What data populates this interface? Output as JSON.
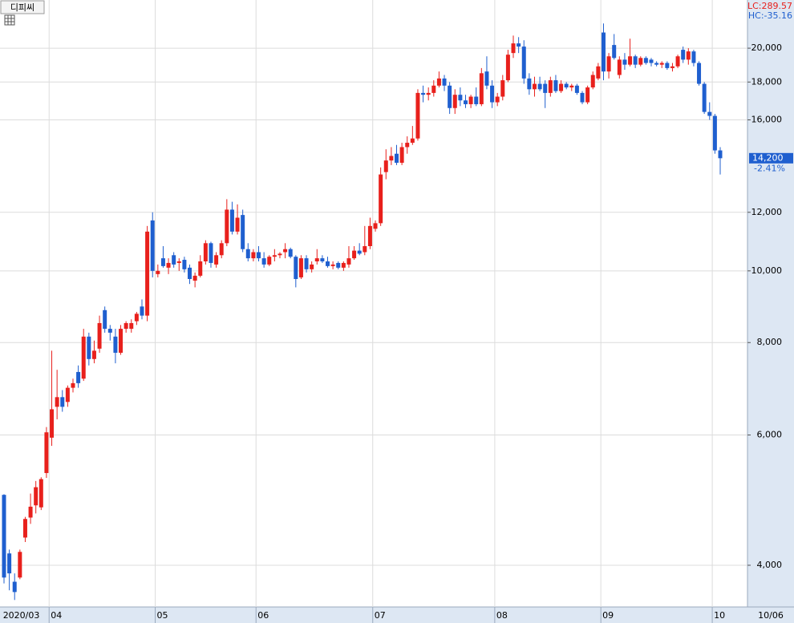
{
  "chart_data": {
    "type": "candlestick",
    "title": "디피씨",
    "lc_label": "LC:289.57",
    "hc_label": "HC:-35.16",
    "last_date": "10/06",
    "last_price": {
      "value": 14200,
      "label": "14,200"
    },
    "change": {
      "value": -2.41,
      "label": "-2.41%"
    },
    "up_color": "#e8201c",
    "down_color": "#1f5fcf",
    "log_scale": true,
    "grid": true,
    "ylim": [
      3513,
      23236
    ],
    "yticks": [
      {
        "value": 4000,
        "label": "4,000"
      },
      {
        "value": 6000,
        "label": "6,000"
      },
      {
        "value": 8000,
        "label": "8,000"
      },
      {
        "value": 10000,
        "label": "10,000"
      },
      {
        "value": 12000,
        "label": "12,000"
      },
      {
        "value": 16000,
        "label": "16,000"
      },
      {
        "value": 18000,
        "label": "18,000"
      },
      {
        "value": 20000,
        "label": "20,000"
      }
    ],
    "categories": [
      "2020/03",
      null,
      null,
      null,
      null,
      null,
      null,
      null,
      null,
      "04",
      null,
      null,
      null,
      null,
      null,
      null,
      null,
      null,
      null,
      null,
      null,
      null,
      null,
      null,
      null,
      null,
      null,
      null,
      null,
      "05",
      null,
      null,
      null,
      null,
      null,
      null,
      null,
      null,
      null,
      null,
      null,
      null,
      null,
      null,
      null,
      null,
      null,
      null,
      "06",
      null,
      null,
      null,
      null,
      null,
      null,
      null,
      null,
      null,
      null,
      null,
      null,
      null,
      null,
      null,
      null,
      null,
      null,
      null,
      null,
      null,
      "07",
      null,
      null,
      null,
      null,
      null,
      null,
      null,
      null,
      null,
      null,
      null,
      null,
      null,
      null,
      null,
      null,
      null,
      null,
      null,
      null,
      null,
      null,
      "08",
      null,
      null,
      null,
      null,
      null,
      null,
      null,
      null,
      null,
      null,
      null,
      null,
      null,
      null,
      null,
      null,
      null,
      null,
      null,
      "09",
      null,
      null,
      null,
      null,
      null,
      null,
      null,
      null,
      null,
      null,
      null,
      null,
      null,
      null,
      null,
      null,
      null,
      null,
      null,
      null,
      "10",
      null
    ],
    "open": [
      4980,
      4150,
      3800,
      3850,
      4360,
      4640,
      4820,
      4790,
      5330,
      5950,
      6550,
      6750,
      6650,
      6950,
      7300,
      7150,
      8150,
      7600,
      7850,
      8850,
      8350,
      8150,
      7750,
      8350,
      8350,
      8550,
      8950,
      8700,
      11700,
      9900,
      10400,
      10100,
      10500,
      10250,
      10350,
      10100,
      9700,
      9850,
      10300,
      10900,
      10200,
      10500,
      10900,
      12100,
      11300,
      11900,
      10700,
      10400,
      10600,
      10400,
      10200,
      10450,
      10500,
      10600,
      10700,
      10450,
      9800,
      10400,
      10050,
      10300,
      10400,
      10300,
      10150,
      10250,
      10100,
      10200,
      10400,
      10650,
      10600,
      10800,
      11400,
      11600,
      13600,
      14100,
      14400,
      14000,
      14700,
      14900,
      15100,
      17400,
      17300,
      17400,
      17800,
      18200,
      17800,
      16600,
      17300,
      17000,
      16800,
      17200,
      16800,
      18600,
      17800,
      16900,
      17200,
      18100,
      19700,
      20300,
      20100,
      18200,
      17600,
      17900,
      17900,
      17400,
      18100,
      17500,
      17900,
      17700,
      17800,
      17400,
      16900,
      17700,
      18200,
      21000,
      18600,
      20200,
      18400,
      19300,
      19000,
      19500,
      19000,
      19400,
      19300,
      19100,
      19000,
      19100,
      18800,
      18900,
      19900,
      19300,
      19800,
      19100,
      17900,
      16400,
      16200,
      14550
    ],
    "high": [
      4990,
      4200,
      3900,
      4200,
      4650,
      5000,
      5200,
      5260,
      6150,
      7800,
      7350,
      6900,
      7000,
      7150,
      7450,
      8350,
      8250,
      8050,
      8700,
      8950,
      8450,
      8350,
      8450,
      8550,
      8600,
      8800,
      9150,
      11500,
      12000,
      10200,
      10800,
      10400,
      10600,
      10400,
      10450,
      10200,
      9950,
      10500,
      11000,
      10950,
      10600,
      11000,
      12500,
      12400,
      12300,
      12100,
      10900,
      10700,
      10800,
      10600,
      10500,
      10700,
      10600,
      10900,
      10750,
      10500,
      10500,
      10500,
      10300,
      10700,
      10500,
      10450,
      10300,
      10300,
      10300,
      10800,
      10800,
      10900,
      11500,
      11800,
      11700,
      13800,
      14600,
      14700,
      14800,
      14900,
      15200,
      15700,
      17600,
      17800,
      17700,
      18100,
      18600,
      18400,
      18000,
      17600,
      17700,
      17300,
      17300,
      17700,
      18800,
      19500,
      18100,
      17400,
      18400,
      19900,
      20800,
      20700,
      20500,
      18500,
      18300,
      18300,
      18100,
      18300,
      18400,
      18100,
      18000,
      17900,
      17900,
      17500,
      17800,
      18600,
      19100,
      21600,
      19700,
      20900,
      19500,
      19700,
      20600,
      19600,
      19500,
      19500,
      19400,
      19200,
      19200,
      19200,
      19100,
      19600,
      20100,
      20000,
      19900,
      19200,
      18000,
      16900,
      16300,
      14700
    ],
    "low": [
      3780,
      3700,
      3590,
      3830,
      4300,
      4550,
      4700,
      4750,
      5250,
      5800,
      6300,
      6450,
      6550,
      6850,
      6950,
      7100,
      7450,
      7500,
      7750,
      8250,
      8050,
      7500,
      7700,
      8250,
      8250,
      8450,
      8600,
      8550,
      9800,
      9800,
      10100,
      9900,
      10100,
      10000,
      9950,
      9600,
      9500,
      9800,
      10200,
      10100,
      10100,
      10400,
      10800,
      11200,
      11200,
      10600,
      10300,
      10300,
      10300,
      10100,
      10150,
      10300,
      10400,
      10400,
      10400,
      9500,
      9750,
      9950,
      9950,
      10200,
      10250,
      10100,
      10050,
      10050,
      10000,
      10100,
      10350,
      10500,
      10500,
      10700,
      11300,
      11500,
      13300,
      13900,
      13900,
      13900,
      14400,
      14800,
      15000,
      16900,
      17000,
      17200,
      17700,
      17500,
      16300,
      16300,
      16700,
      16600,
      16600,
      16700,
      16700,
      17600,
      16600,
      16700,
      17000,
      18000,
      19400,
      19700,
      17900,
      17300,
      17200,
      17500,
      16600,
      17200,
      17400,
      17400,
      17600,
      17500,
      17300,
      16800,
      16800,
      17600,
      18100,
      18100,
      18200,
      19300,
      18200,
      18700,
      18900,
      18800,
      18900,
      19000,
      18900,
      18900,
      18800,
      18700,
      18600,
      18800,
      19100,
      19000,
      18900,
      17800,
      16300,
      16000,
      14400,
      13500
    ],
    "close": [
      3850,
      3900,
      3680,
      4170,
      4620,
      4800,
      5100,
      5230,
      6050,
      6500,
      6750,
      6550,
      6950,
      7050,
      7050,
      8150,
      7600,
      7800,
      8500,
      8350,
      8250,
      7750,
      8350,
      8500,
      8500,
      8750,
      8700,
      11300,
      10000,
      10000,
      10150,
      10250,
      10200,
      10300,
      10050,
      9750,
      9850,
      10300,
      10900,
      10250,
      10500,
      10900,
      12100,
      11300,
      11800,
      10700,
      10400,
      10600,
      10400,
      10200,
      10450,
      10500,
      10550,
      10700,
      10450,
      9750,
      10400,
      10050,
      10200,
      10400,
      10300,
      10150,
      10200,
      10100,
      10250,
      10400,
      10650,
      10550,
      10800,
      11500,
      11600,
      13500,
      14100,
      14300,
      14000,
      14700,
      14900,
      15100,
      17400,
      17300,
      17400,
      17800,
      18200,
      17800,
      16600,
      17300,
      17000,
      16800,
      17200,
      16800,
      18500,
      17800,
      16900,
      17200,
      18100,
      19600,
      20300,
      20100,
      18200,
      17600,
      17900,
      17600,
      17400,
      18100,
      17500,
      17900,
      17700,
      17800,
      17400,
      16900,
      17700,
      18400,
      18900,
      18600,
      19500,
      19400,
      19300,
      19000,
      19500,
      19000,
      19400,
      19100,
      19100,
      19000,
      19100,
      18800,
      18900,
      19500,
      19300,
      19800,
      19100,
      17900,
      16400,
      16200,
      14550,
      14200
    ]
  }
}
